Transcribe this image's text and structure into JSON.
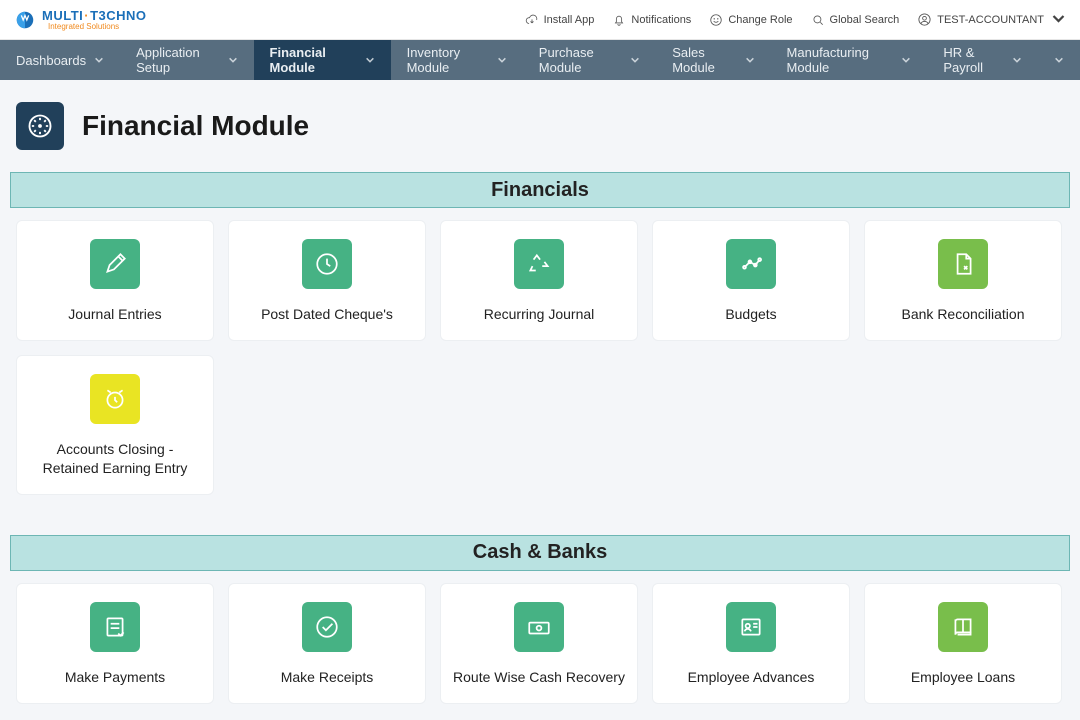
{
  "brand": {
    "name_left": "MULTI",
    "name_right": "T3CHNO",
    "sub": "Integrated Solutions"
  },
  "top": {
    "install": "Install App",
    "notifications": "Notifications",
    "changeRole": "Change Role",
    "globalSearch": "Global Search",
    "user": "TEST-ACCOUNTANT"
  },
  "nav": [
    {
      "label": "Dashboards",
      "active": false
    },
    {
      "label": "Application Setup",
      "active": false
    },
    {
      "label": "Financial Module",
      "active": true
    },
    {
      "label": "Inventory Module",
      "active": false
    },
    {
      "label": "Purchase Module",
      "active": false
    },
    {
      "label": "Sales Module",
      "active": false
    },
    {
      "label": "Manufacturing Module",
      "active": false
    },
    {
      "label": "HR & Payroll",
      "active": false
    }
  ],
  "page": {
    "title": "Financial Module"
  },
  "colors": {
    "green": "#46b284",
    "greenAlt": "#79be4b",
    "yellow": "#e9e423"
  },
  "sections": [
    {
      "title": "Financials",
      "cards": [
        {
          "label": "Journal Entries",
          "icon": "pencil",
          "tileColor": "green"
        },
        {
          "label": "Post Dated Cheque's",
          "icon": "clock",
          "tileColor": "green"
        },
        {
          "label": "Recurring Journal",
          "icon": "recycle",
          "tileColor": "green"
        },
        {
          "label": "Budgets",
          "icon": "chart",
          "tileColor": "green"
        },
        {
          "label": "Bank Reconciliation",
          "icon": "file",
          "tileColor": "greenAlt"
        },
        {
          "label": "Accounts Closing - Retained Earning Entry",
          "icon": "alarm",
          "tileColor": "yellow"
        }
      ]
    },
    {
      "title": "Cash & Banks",
      "cards": [
        {
          "label": "Make Payments",
          "icon": "note",
          "tileColor": "green"
        },
        {
          "label": "Make Receipts",
          "icon": "check",
          "tileColor": "green"
        },
        {
          "label": "Route Wise Cash Recovery",
          "icon": "cash",
          "tileColor": "green"
        },
        {
          "label": "Employee Advances",
          "icon": "idcard",
          "tileColor": "green"
        },
        {
          "label": "Employee Loans",
          "icon": "book",
          "tileColor": "greenAlt"
        }
      ]
    }
  ]
}
